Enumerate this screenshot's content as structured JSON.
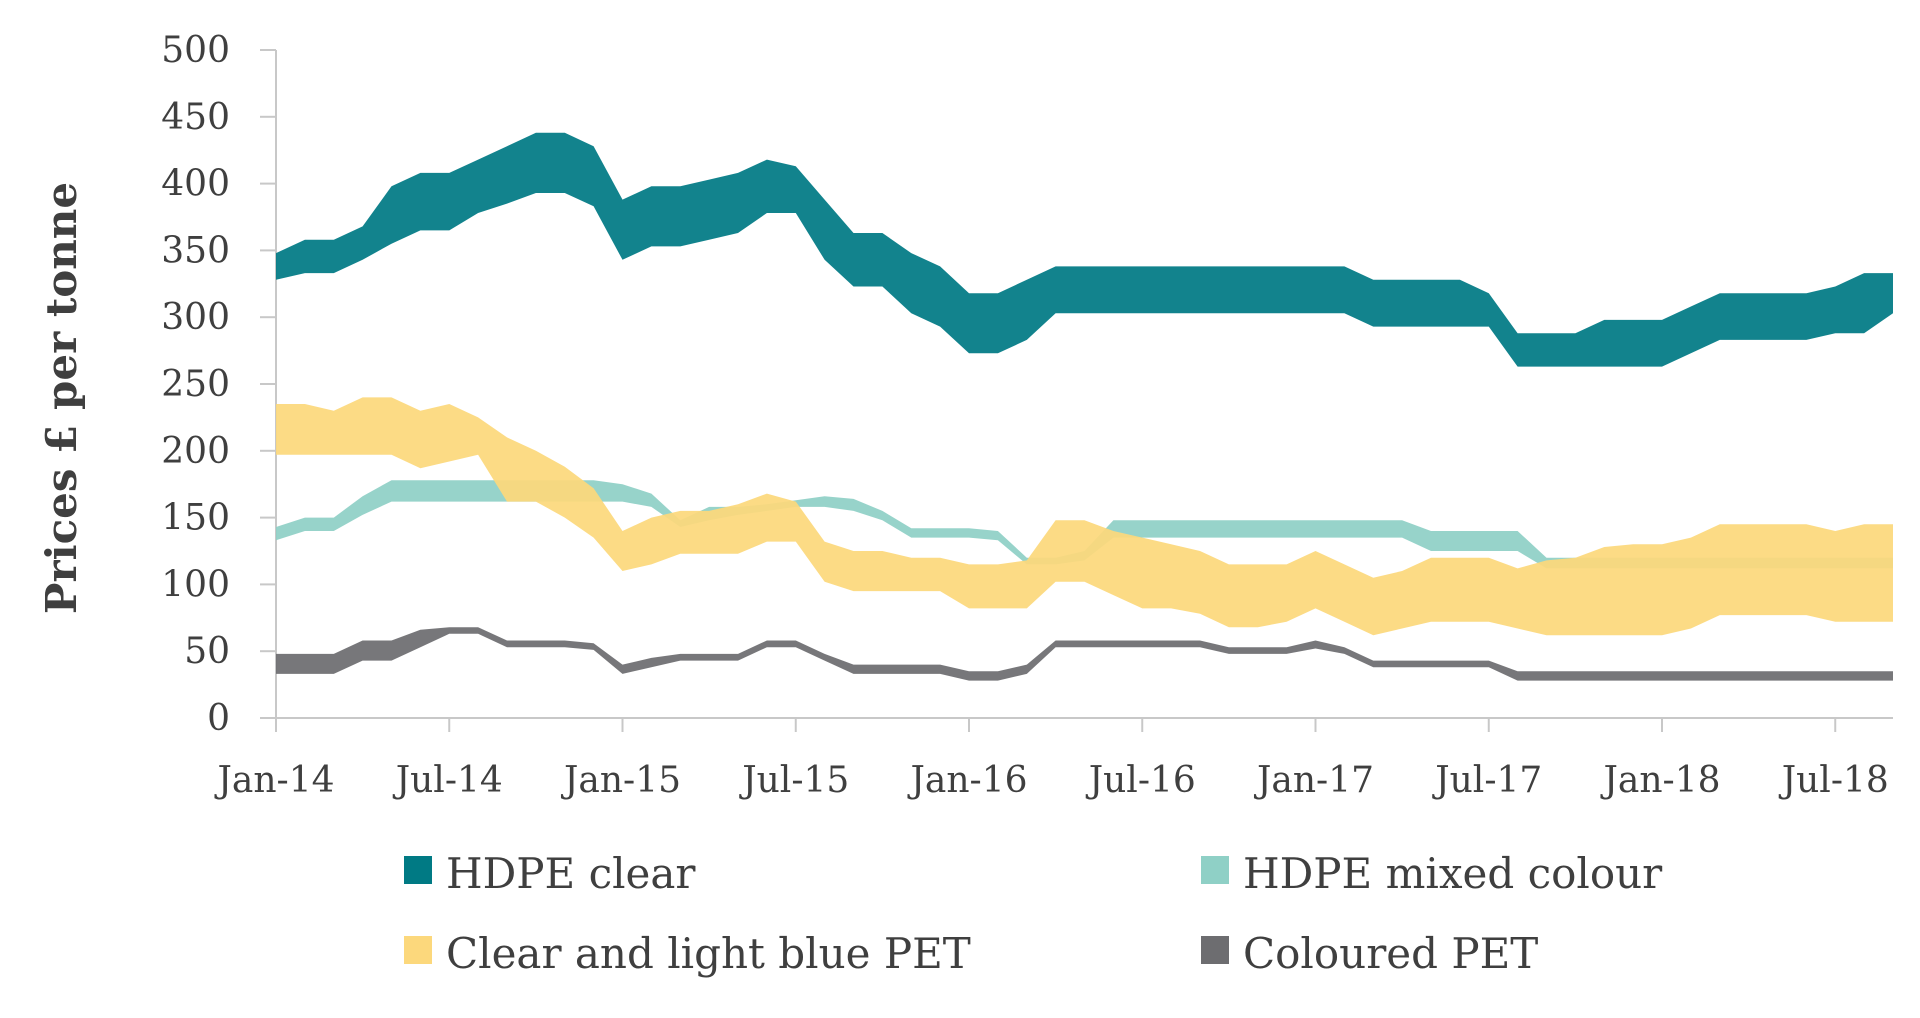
{
  "chart_data": {
    "type": "area",
    "title": "",
    "xlabel": "",
    "ylabel": "Prices £ per tonne",
    "ylim": [
      0,
      500
    ],
    "yticks": [
      0,
      50,
      100,
      150,
      200,
      250,
      300,
      350,
      400,
      450,
      500
    ],
    "x_start": "Jan-14",
    "x_end": "Sep-18",
    "x_tick_labels": [
      "Jan-14",
      "Jul-14",
      "Jan-15",
      "Jul-15",
      "Jan-16",
      "Jul-16",
      "Jan-17",
      "Jul-17",
      "Jan-18",
      "Jul-18"
    ],
    "grid": false,
    "legend_position": "bottom",
    "series": [
      {
        "name": "HDPE mixed colour",
        "color": "#8fd0c6",
        "range_low": [
          133,
          140,
          140,
          152,
          162,
          162,
          162,
          162,
          162,
          162,
          162,
          162,
          162,
          158,
          143,
          148,
          152,
          155,
          158,
          158,
          155,
          148,
          135,
          135,
          135,
          133,
          115,
          115,
          118,
          135,
          135,
          135,
          135,
          135,
          135,
          135,
          135,
          135,
          135,
          135,
          125,
          125,
          125,
          125,
          112,
          112,
          112,
          112,
          112,
          112,
          112,
          112,
          112,
          112,
          112,
          112,
          112
        ],
        "range_high": [
          143,
          150,
          150,
          166,
          178,
          178,
          178,
          178,
          178,
          178,
          178,
          178,
          175,
          168,
          148,
          158,
          158,
          160,
          163,
          166,
          164,
          155,
          142,
          142,
          142,
          140,
          120,
          120,
          125,
          148,
          148,
          148,
          148,
          148,
          148,
          148,
          148,
          148,
          148,
          148,
          140,
          140,
          140,
          140,
          120,
          120,
          120,
          120,
          120,
          120,
          120,
          120,
          120,
          120,
          120,
          120,
          120
        ]
      },
      {
        "name": "Clear and light blue PET",
        "color": "#fcd87c",
        "range_low": [
          197,
          197,
          197,
          197,
          197,
          187,
          192,
          197,
          162,
          162,
          150,
          135,
          110,
          115,
          123,
          123,
          123,
          132,
          132,
          102,
          95,
          95,
          95,
          95,
          82,
          82,
          82,
          102,
          102,
          92,
          82,
          82,
          78,
          68,
          68,
          72,
          82,
          72,
          62,
          67,
          72,
          72,
          72,
          67,
          62,
          62,
          62,
          62,
          62,
          67,
          77,
          77,
          77,
          77,
          72,
          72,
          72
        ],
        "range_high": [
          235,
          235,
          230,
          240,
          240,
          230,
          235,
          225,
          210,
          200,
          188,
          172,
          140,
          150,
          155,
          155,
          160,
          168,
          162,
          132,
          125,
          125,
          120,
          120,
          115,
          115,
          118,
          148,
          148,
          140,
          135,
          130,
          125,
          115,
          115,
          115,
          125,
          115,
          105,
          110,
          120,
          120,
          120,
          112,
          118,
          120,
          128,
          130,
          130,
          135,
          145,
          145,
          145,
          145,
          140,
          145,
          145
        ]
      },
      {
        "name": "HDPE clear",
        "color": "#007a84",
        "range_low": [
          328,
          333,
          333,
          343,
          355,
          365,
          365,
          378,
          385,
          393,
          393,
          383,
          343,
          353,
          353,
          358,
          363,
          378,
          378,
          343,
          323,
          323,
          303,
          293,
          273,
          273,
          283,
          303,
          303,
          303,
          303,
          303,
          303,
          303,
          303,
          303,
          303,
          303,
          293,
          293,
          293,
          293,
          293,
          263,
          263,
          263,
          263,
          263,
          263,
          273,
          283,
          283,
          283,
          283,
          288,
          288,
          303
        ],
        "range_high": [
          348,
          358,
          358,
          368,
          398,
          408,
          408,
          418,
          428,
          438,
          438,
          428,
          388,
          398,
          398,
          403,
          408,
          418,
          413,
          388,
          363,
          363,
          348,
          338,
          318,
          318,
          328,
          338,
          338,
          338,
          338,
          338,
          338,
          338,
          338,
          338,
          338,
          338,
          328,
          328,
          328,
          328,
          318,
          288,
          288,
          288,
          298,
          298,
          298,
          308,
          318,
          318,
          318,
          318,
          323,
          333,
          333
        ]
      },
      {
        "name": "Coloured PET",
        "color": "#6d6d70",
        "range_low": [
          33,
          33,
          33,
          43,
          43,
          53,
          63,
          63,
          53,
          53,
          53,
          51,
          33,
          38,
          43,
          43,
          43,
          53,
          53,
          43,
          33,
          33,
          33,
          33,
          28,
          28,
          33,
          53,
          53,
          53,
          53,
          53,
          53,
          48,
          48,
          48,
          52,
          48,
          38,
          38,
          38,
          38,
          38,
          28,
          28,
          28,
          28,
          28,
          28,
          28,
          28,
          28,
          28,
          28,
          28,
          28,
          28
        ],
        "range_high": [
          48,
          48,
          48,
          58,
          58,
          66,
          68,
          68,
          58,
          58,
          58,
          56,
          40,
          45,
          48,
          48,
          48,
          58,
          58,
          48,
          40,
          40,
          40,
          40,
          35,
          35,
          40,
          58,
          58,
          58,
          58,
          58,
          58,
          53,
          53,
          53,
          58,
          53,
          43,
          43,
          43,
          43,
          43,
          35,
          35,
          35,
          35,
          35,
          35,
          35,
          35,
          35,
          35,
          35,
          35,
          35,
          35
        ]
      }
    ],
    "legend_order": [
      "HDPE clear",
      "HDPE mixed colour",
      "Clear and light blue PET",
      "Coloured PET"
    ]
  }
}
